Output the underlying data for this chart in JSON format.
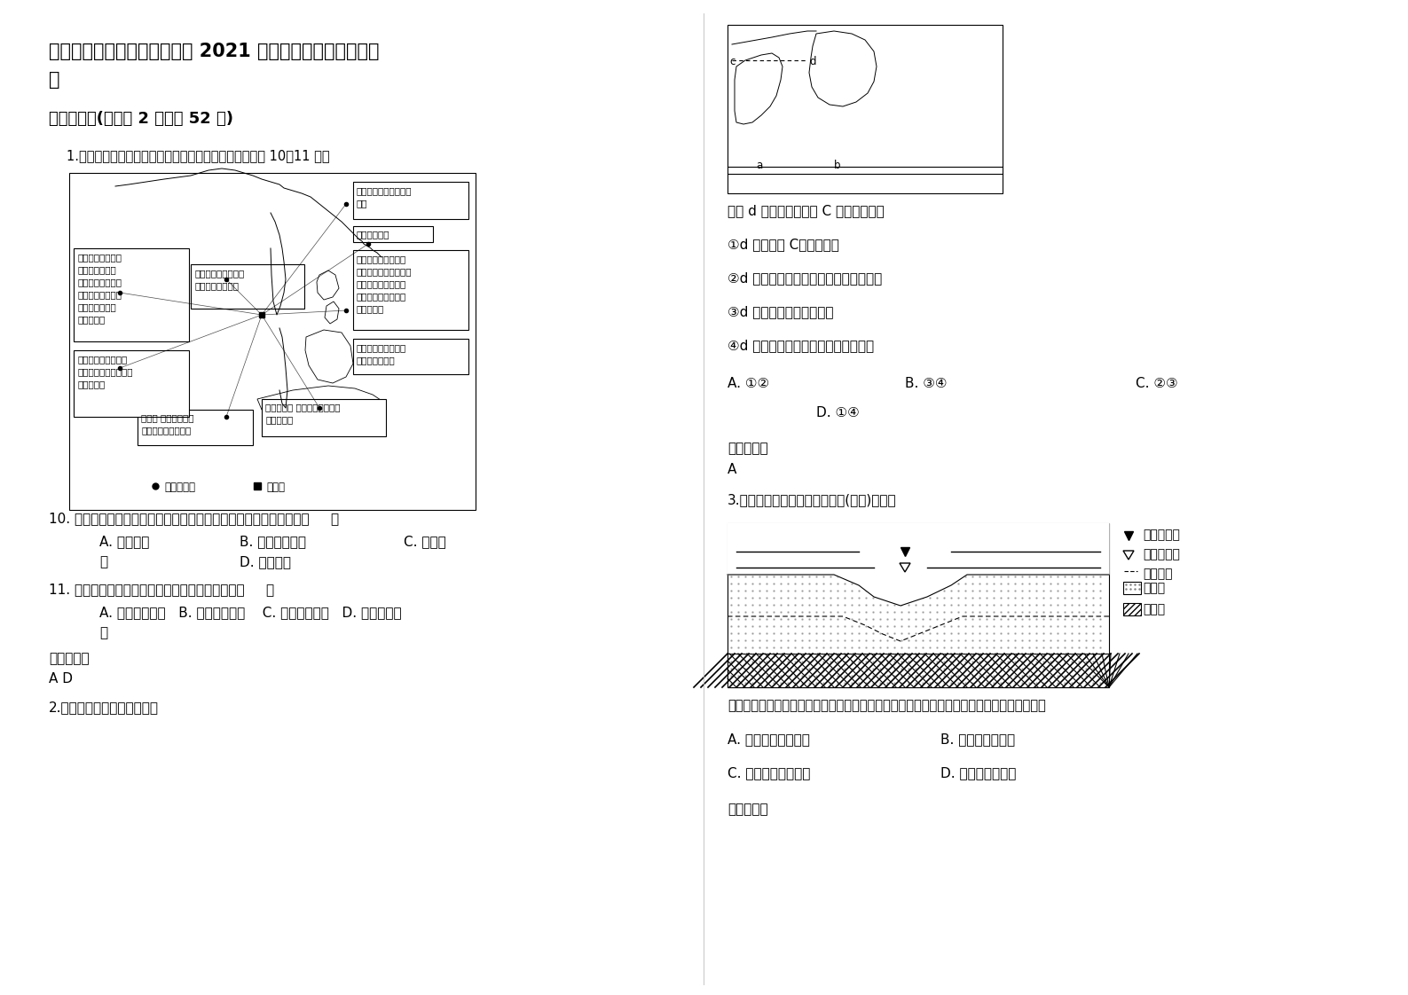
{
  "bg_color": "#ffffff",
  "text_color": "#000000",
  "title_line1": "四川省资阳市雁江区第一中学 2021 年高三地理模拟试卷含解",
  "title_line2": "析",
  "section1": "一、选择题(每小题 2 分，共 52 分)",
  "q1_intro": "1.下图是以泰国为组装基地的硬盘驱动器生产网络，完成 10～11 题。",
  "q10": "10. 大量企业在泰国投资建立硬盘驱动器组装基地，主要是因为泰国（     ）",
  "q10_A": "A. 地价低廉",
  "q10_B": "B. 劳动力素质高",
  "q10_C": "C. 科技发",
  "q10_C2": "达",
  "q10_D": "D. 市场广阔",
  "q11": "11. 促进硬盘驱动器零部件生产分散的主要原因是（     ）",
  "q11_opts": "A. 企业协作减少   B. 人口迁移频繁    C. 环境污染严重   D. 交通运输发",
  "q11_opts2": "展",
  "ans_label": "参考答案：",
  "q10q11_ans": "A D",
  "q2_intro": "2.读世界某地区轮廓图，完成",
  "q2_q": "图中 d 水域的盐度高于 C 水域的原因为",
  "q2_1": "①d 水温高于 C，蒸发量大",
  "q2_2": "②d 水域封闭度高，与外界海水的交流少",
  "q2_3": "③d 处在背风坡，蒸发量大",
  "q2_4": "④d 的周围是沙漠，飘来溶解的盐份多",
  "q2_A": "A. ①②",
  "q2_B": "B. ③④",
  "q2_C": "C. ②③",
  "q2_D": "D. ①④",
  "q2_ans": "A",
  "q3_intro": "3.读我国华南某河流下游剖面图(下图)，回答",
  "q3_q": "当该河流入海口出现咸潮（注：指河口海潮上溯，咸淡水混合造成河道水体变成。）时，该河",
  "q3_A": "A. 处于最高水位时期",
  "q3_B": "B. 为赤潮多发季节",
  "q3_C": "C. 处于最低水位时期",
  "q3_D": "D. 可能会出现断流",
  "q3_ans_label": "参考答案："
}
